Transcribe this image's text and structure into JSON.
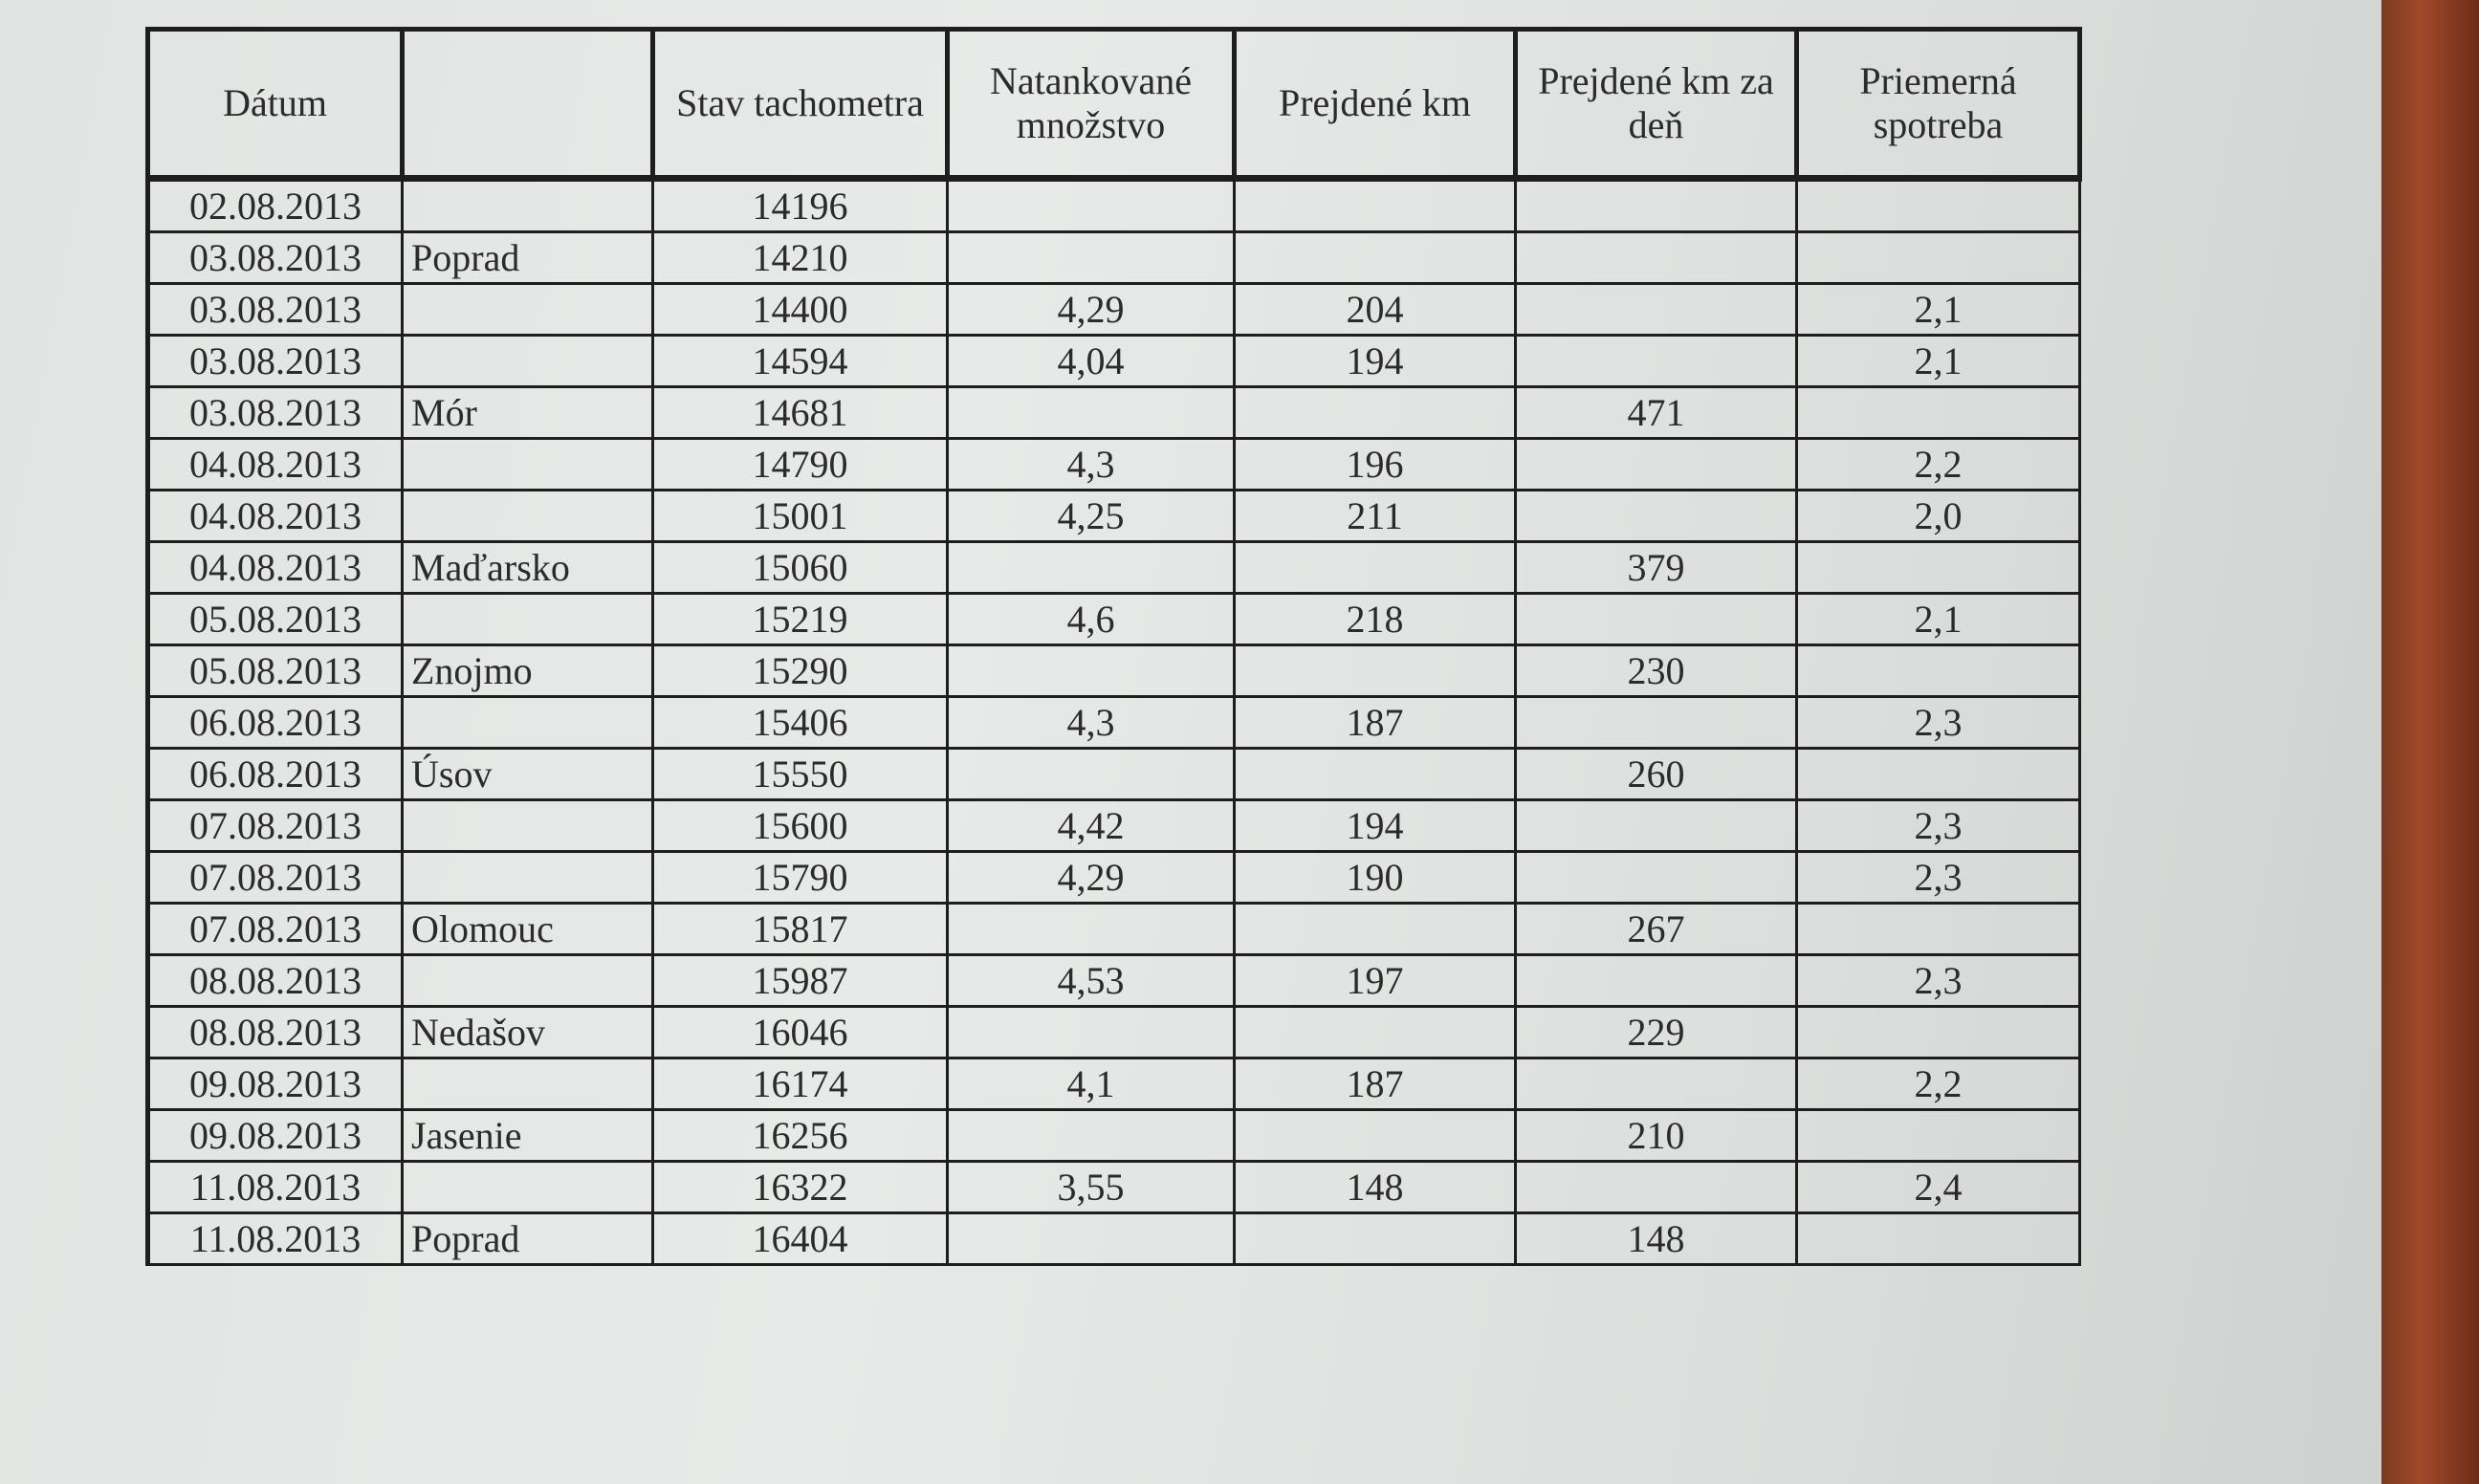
{
  "table": {
    "headers": [
      "Dátum",
      "",
      "Stav tachometra",
      "Natankované množstvo",
      "Prejdené km",
      "Prejdené km za deň",
      "Priemerná spotreba"
    ],
    "rows": [
      [
        "02.08.2013",
        "",
        "14196",
        "",
        "",
        "",
        ""
      ],
      [
        "03.08.2013",
        "Poprad",
        "14210",
        "",
        "",
        "",
        ""
      ],
      [
        "03.08.2013",
        "",
        "14400",
        "4,29",
        "204",
        "",
        "2,1"
      ],
      [
        "03.08.2013",
        "",
        "14594",
        "4,04",
        "194",
        "",
        "2,1"
      ],
      [
        "03.08.2013",
        "Mór",
        "14681",
        "",
        "",
        "471",
        ""
      ],
      [
        "04.08.2013",
        "",
        "14790",
        "4,3",
        "196",
        "",
        "2,2"
      ],
      [
        "04.08.2013",
        "",
        "15001",
        "4,25",
        "211",
        "",
        "2,0"
      ],
      [
        "04.08.2013",
        "Maďarsko",
        "15060",
        "",
        "",
        "379",
        ""
      ],
      [
        "05.08.2013",
        "",
        "15219",
        "4,6",
        "218",
        "",
        "2,1"
      ],
      [
        "05.08.2013",
        "Znojmo",
        "15290",
        "",
        "",
        "230",
        ""
      ],
      [
        "06.08.2013",
        "",
        "15406",
        "4,3",
        "187",
        "",
        "2,3"
      ],
      [
        "06.08.2013",
        "Úsov",
        "15550",
        "",
        "",
        "260",
        ""
      ],
      [
        "07.08.2013",
        "",
        "15600",
        "4,42",
        "194",
        "",
        "2,3"
      ],
      [
        "07.08.2013",
        "",
        "15790",
        "4,29",
        "190",
        "",
        "2,3"
      ],
      [
        "07.08.2013",
        "Olomouc",
        "15817",
        "",
        "",
        "267",
        ""
      ],
      [
        "08.08.2013",
        "",
        "15987",
        "4,53",
        "197",
        "",
        "2,3"
      ],
      [
        "08.08.2013",
        "Nedašov",
        "16046",
        "",
        "",
        "229",
        ""
      ],
      [
        "09.08.2013",
        "",
        "16174",
        "4,1",
        "187",
        "",
        "2,2"
      ],
      [
        "09.08.2013",
        "Jasenie",
        "16256",
        "",
        "",
        "210",
        ""
      ],
      [
        "11.08.2013",
        "",
        "16322",
        "3,55",
        "148",
        "",
        "2,4"
      ],
      [
        "11.08.2013",
        "Poprad",
        "16404",
        "",
        "",
        "148",
        ""
      ]
    ]
  }
}
